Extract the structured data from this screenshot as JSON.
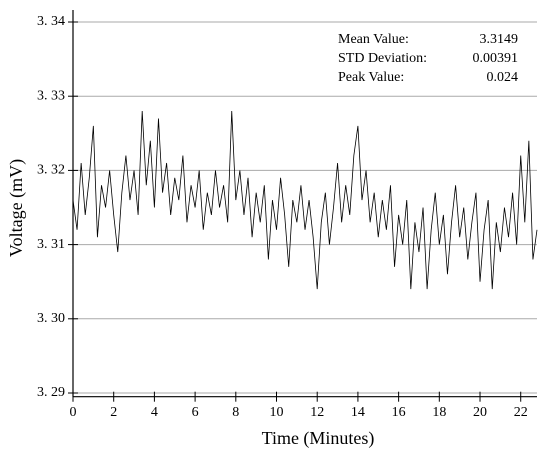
{
  "chart_data": {
    "type": "line",
    "xlabel": "Time (Minutes)",
    "ylabel": "Voltage (mV)",
    "annotations": [
      {
        "label": "Mean Value:",
        "value": 3.3149
      },
      {
        "label": "STD Deviation:",
        "value": 0.00391
      },
      {
        "label": "Peak Value:",
        "value": 0.024
      }
    ],
    "color": "#000000",
    "grid": true,
    "xlim": [
      0,
      22.8
    ],
    "ylim": [
      3.2895,
      3.3405
    ],
    "xticks": [
      0,
      2,
      4,
      6,
      8,
      10,
      12,
      14,
      16,
      18,
      20,
      22
    ],
    "yticks": [
      {
        "value": 3.29,
        "label": "3. 29"
      },
      {
        "value": 3.3,
        "label": "3. 30"
      },
      {
        "value": 3.31,
        "label": "3. 31"
      },
      {
        "value": 3.32,
        "label": "3. 32"
      },
      {
        "value": 3.33,
        "label": "3. 33"
      },
      {
        "value": 3.34,
        "label": "3. 34"
      }
    ],
    "x": [
      0.0,
      0.2,
      0.4,
      0.6,
      0.8,
      1.0,
      1.2,
      1.4,
      1.6,
      1.8,
      2.0,
      2.2,
      2.4,
      2.6,
      2.8,
      3.0,
      3.2,
      3.4,
      3.6,
      3.8,
      4.0,
      4.2,
      4.4,
      4.6,
      4.8,
      5.0,
      5.2,
      5.4,
      5.6,
      5.8,
      6.0,
      6.2,
      6.4,
      6.6,
      6.8,
      7.0,
      7.2,
      7.4,
      7.6,
      7.8,
      8.0,
      8.2,
      8.4,
      8.6,
      8.8,
      9.0,
      9.2,
      9.4,
      9.6,
      9.8,
      10.0,
      10.2,
      10.4,
      10.6,
      10.8,
      11.0,
      11.2,
      11.4,
      11.6,
      11.8,
      12.0,
      12.2,
      12.4,
      12.6,
      12.8,
      13.0,
      13.2,
      13.4,
      13.6,
      13.8,
      14.0,
      14.2,
      14.4,
      14.6,
      14.8,
      15.0,
      15.2,
      15.4,
      15.6,
      15.8,
      16.0,
      16.2,
      16.4,
      16.6,
      16.8,
      17.0,
      17.2,
      17.4,
      17.6,
      17.8,
      18.0,
      18.2,
      18.4,
      18.6,
      18.8,
      19.0,
      19.2,
      19.4,
      19.6,
      19.8,
      20.0,
      20.2,
      20.4,
      20.6,
      20.8,
      21.0,
      21.2,
      21.4,
      21.6,
      21.8,
      22.0,
      22.2,
      22.4,
      22.6,
      22.8
    ],
    "values": [
      3.316,
      3.312,
      3.321,
      3.314,
      3.319,
      3.326,
      3.311,
      3.318,
      3.315,
      3.32,
      3.314,
      3.309,
      3.317,
      3.322,
      3.316,
      3.32,
      3.314,
      3.328,
      3.318,
      3.324,
      3.315,
      3.327,
      3.317,
      3.321,
      3.314,
      3.319,
      3.316,
      3.322,
      3.313,
      3.318,
      3.315,
      3.32,
      3.312,
      3.317,
      3.314,
      3.32,
      3.315,
      3.318,
      3.313,
      3.328,
      3.316,
      3.32,
      3.314,
      3.319,
      3.311,
      3.317,
      3.313,
      3.318,
      3.308,
      3.316,
      3.312,
      3.319,
      3.314,
      3.307,
      3.316,
      3.313,
      3.318,
      3.312,
      3.316,
      3.311,
      3.304,
      3.313,
      3.317,
      3.31,
      3.315,
      3.321,
      3.313,
      3.318,
      3.314,
      3.322,
      3.326,
      3.316,
      3.32,
      3.313,
      3.317,
      3.311,
      3.316,
      3.312,
      3.318,
      3.307,
      3.314,
      3.31,
      3.316,
      3.304,
      3.313,
      3.309,
      3.315,
      3.304,
      3.312,
      3.317,
      3.31,
      3.314,
      3.306,
      3.313,
      3.318,
      3.311,
      3.315,
      3.308,
      3.313,
      3.317,
      3.305,
      3.312,
      3.316,
      3.304,
      3.313,
      3.309,
      3.315,
      3.311,
      3.317,
      3.31,
      3.322,
      3.313,
      3.324,
      3.308,
      3.312
    ]
  }
}
